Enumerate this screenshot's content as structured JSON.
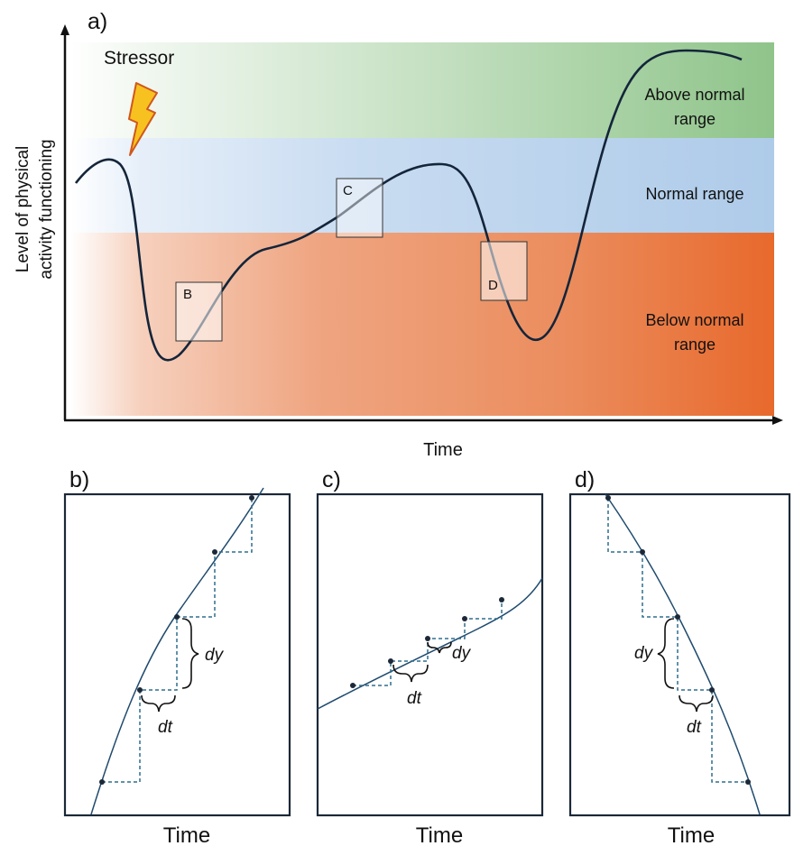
{
  "panel_a": {
    "label": "a)",
    "y_axis_label_line1": "Level of physical",
    "y_axis_label_line2": "activity functioning",
    "x_axis_label": "Time",
    "stressor_label": "Stressor",
    "bands": {
      "above_line1": "Above normal",
      "above_line2": "range",
      "normal": "Normal range",
      "below_line1": "Below normal",
      "below_line2": "range"
    },
    "boxes": {
      "b": "B",
      "c": "C",
      "d": "D"
    },
    "colors": {
      "above": "#8fc48a",
      "normal": "#aecbe9",
      "below": "#e8692c",
      "curve": "#14253a",
      "bolt_fill": "#f7c21f",
      "bolt_stroke": "#d0571c"
    }
  },
  "panel_b": {
    "label": "b)",
    "dy": "dy",
    "dt": "dt",
    "x_axis_label": "Time"
  },
  "panel_c": {
    "label": "c)",
    "dy": "dy",
    "dt": "dt",
    "x_axis_label": "Time"
  },
  "panel_d": {
    "label": "d)",
    "dy": "dy",
    "dt": "dt",
    "x_axis_label": "Time"
  }
}
